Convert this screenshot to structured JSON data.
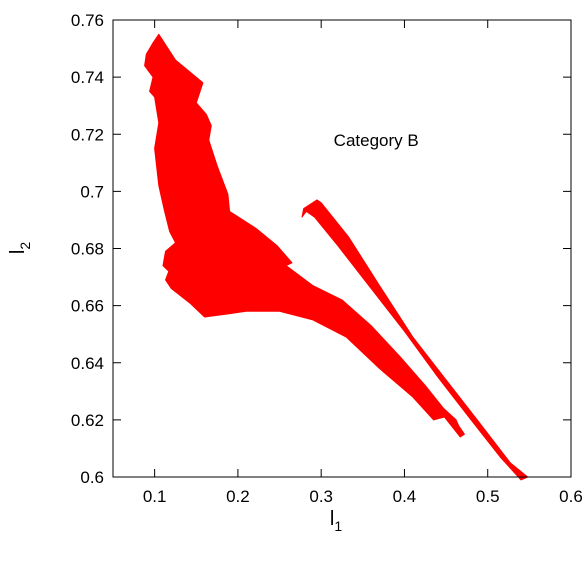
{
  "chart_data": {
    "type": "area",
    "title": "",
    "xlabel": "l",
    "xlabel_subscript": "1",
    "ylabel": "l",
    "ylabel_subscript": "2",
    "xlim": [
      0.05,
      0.6
    ],
    "ylim": [
      0.6,
      0.76
    ],
    "xticks": [
      0.1,
      0.2,
      0.3,
      0.4,
      0.5,
      0.6
    ],
    "yticks": [
      0.6,
      0.62,
      0.64,
      0.66,
      0.68,
      0.7,
      0.72,
      0.74,
      0.76
    ],
    "grid": false,
    "legend": "none",
    "annotation": {
      "text": "Category B",
      "x": 0.315,
      "y": 0.718
    },
    "series_color": "#ff0000",
    "regions": [
      {
        "points": [
          [
            0.105,
            0.755
          ],
          [
            0.125,
            0.746
          ],
          [
            0.158,
            0.738
          ],
          [
            0.15,
            0.731
          ],
          [
            0.162,
            0.727
          ],
          [
            0.168,
            0.723
          ],
          [
            0.165,
            0.718
          ],
          [
            0.175,
            0.709
          ],
          [
            0.188,
            0.699
          ],
          [
            0.19,
            0.693
          ],
          [
            0.222,
            0.687
          ],
          [
            0.247,
            0.681
          ],
          [
            0.265,
            0.675
          ],
          [
            0.258,
            0.674
          ],
          [
            0.29,
            0.667
          ],
          [
            0.325,
            0.662
          ],
          [
            0.36,
            0.653
          ],
          [
            0.395,
            0.642
          ],
          [
            0.425,
            0.632
          ],
          [
            0.447,
            0.624
          ],
          [
            0.462,
            0.62
          ],
          [
            0.465,
            0.618
          ],
          [
            0.472,
            0.615
          ],
          [
            0.467,
            0.614
          ],
          [
            0.448,
            0.621
          ],
          [
            0.435,
            0.62
          ],
          [
            0.41,
            0.628
          ],
          [
            0.37,
            0.638
          ],
          [
            0.33,
            0.649
          ],
          [
            0.29,
            0.655
          ],
          [
            0.25,
            0.658
          ],
          [
            0.21,
            0.658
          ],
          [
            0.185,
            0.657
          ],
          [
            0.16,
            0.656
          ],
          [
            0.142,
            0.661
          ],
          [
            0.12,
            0.666
          ],
          [
            0.113,
            0.669
          ],
          [
            0.117,
            0.672
          ],
          [
            0.11,
            0.674
          ],
          [
            0.113,
            0.679
          ],
          [
            0.125,
            0.682
          ],
          [
            0.118,
            0.686
          ],
          [
            0.112,
            0.693
          ],
          [
            0.105,
            0.702
          ],
          [
            0.1,
            0.715
          ],
          [
            0.105,
            0.724
          ],
          [
            0.1,
            0.733
          ],
          [
            0.094,
            0.735
          ],
          [
            0.098,
            0.74
          ],
          [
            0.088,
            0.744
          ],
          [
            0.09,
            0.748
          ],
          [
            0.098,
            0.752
          ]
        ]
      },
      {
        "points": [
          [
            0.279,
            0.694
          ],
          [
            0.295,
            0.697
          ],
          [
            0.3,
            0.696
          ],
          [
            0.333,
            0.684
          ],
          [
            0.37,
            0.667
          ],
          [
            0.41,
            0.649
          ],
          [
            0.45,
            0.634
          ],
          [
            0.49,
            0.619
          ],
          [
            0.527,
            0.605
          ],
          [
            0.548,
            0.6
          ],
          [
            0.54,
            0.599
          ],
          [
            0.515,
            0.607
          ],
          [
            0.48,
            0.62
          ],
          [
            0.44,
            0.635
          ],
          [
            0.4,
            0.651
          ],
          [
            0.36,
            0.666
          ],
          [
            0.32,
            0.681
          ],
          [
            0.292,
            0.691
          ],
          [
            0.282,
            0.693
          ],
          [
            0.277,
            0.691
          ]
        ]
      }
    ]
  }
}
